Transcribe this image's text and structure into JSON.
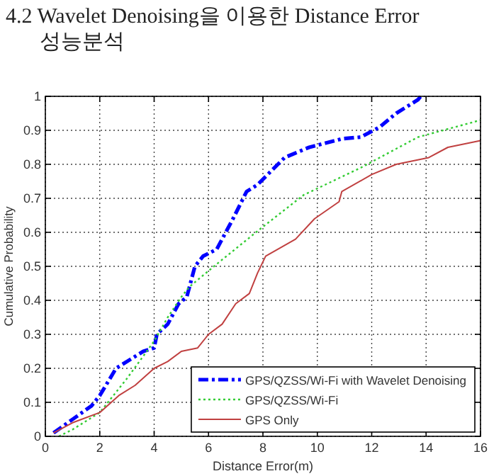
{
  "chart_data": {
    "type": "line",
    "title": "4.2 Wavelet Denoising을 이용한 Distance Error 성능분석",
    "xlabel": "Distance Error(m)",
    "ylabel": "Cumulative Probability",
    "xlim": [
      0,
      16
    ],
    "xticks": [
      0,
      2,
      4,
      6,
      8,
      10,
      12,
      14,
      16
    ],
    "ylim": [
      0,
      1
    ],
    "yticks": [
      0,
      0.1,
      0.2,
      0.3,
      0.4,
      0.5,
      0.6,
      0.7,
      0.8,
      0.9,
      1
    ],
    "grid": true,
    "legend": "bottom right",
    "series": [
      {
        "name": "GPS/QZSS/Wi-Fi with Wavelet Denoising",
        "color": "#0000ff",
        "line_style": "dashdot",
        "x": [
          0.3,
          1,
          1.7,
          2,
          2.6,
          3.2,
          3.6,
          4,
          4.1,
          4.5,
          4.9,
          5.2,
          5.3,
          5.5,
          5.8,
          6.3,
          6.9,
          7.4,
          7.8,
          8.8,
          9.7,
          10.9,
          11.6,
          12.3,
          12.9,
          13.7,
          13.8
        ],
        "values": [
          0.01,
          0.05,
          0.09,
          0.12,
          0.2,
          0.23,
          0.25,
          0.26,
          0.3,
          0.33,
          0.39,
          0.41,
          0.44,
          0.5,
          0.53,
          0.55,
          0.64,
          0.72,
          0.74,
          0.82,
          0.85,
          0.875,
          0.88,
          0.91,
          0.95,
          0.99,
          1
        ]
      },
      {
        "name": "GPS/QZSS/Wi-Fi",
        "color": "#33cc33",
        "line_style": "dotted",
        "x": [
          0.5,
          1,
          2,
          3,
          4,
          4.5,
          5,
          5.3,
          6.2,
          7.9,
          9.5,
          11.6,
          13.7,
          16
        ],
        "values": [
          0,
          0.02,
          0.07,
          0.17,
          0.28,
          0.35,
          0.41,
          0.44,
          0.5,
          0.61,
          0.71,
          0.79,
          0.88,
          0.93
        ]
      },
      {
        "name": "GPS Only",
        "color": "#c04040",
        "line_style": "solid",
        "x": [
          0.3,
          1,
          2,
          2.7,
          3.3,
          4,
          4.5,
          5,
          5.6,
          6,
          6.5,
          7,
          7.5,
          7.8,
          8.1,
          9.2,
          9.9,
          10.8,
          10.9,
          12,
          12.9,
          14.1,
          14.8,
          16
        ],
        "values": [
          0.01,
          0.04,
          0.07,
          0.12,
          0.15,
          0.2,
          0.22,
          0.25,
          0.26,
          0.3,
          0.33,
          0.39,
          0.42,
          0.48,
          0.53,
          0.58,
          0.64,
          0.69,
          0.72,
          0.77,
          0.8,
          0.82,
          0.85,
          0.87
        ]
      }
    ]
  }
}
